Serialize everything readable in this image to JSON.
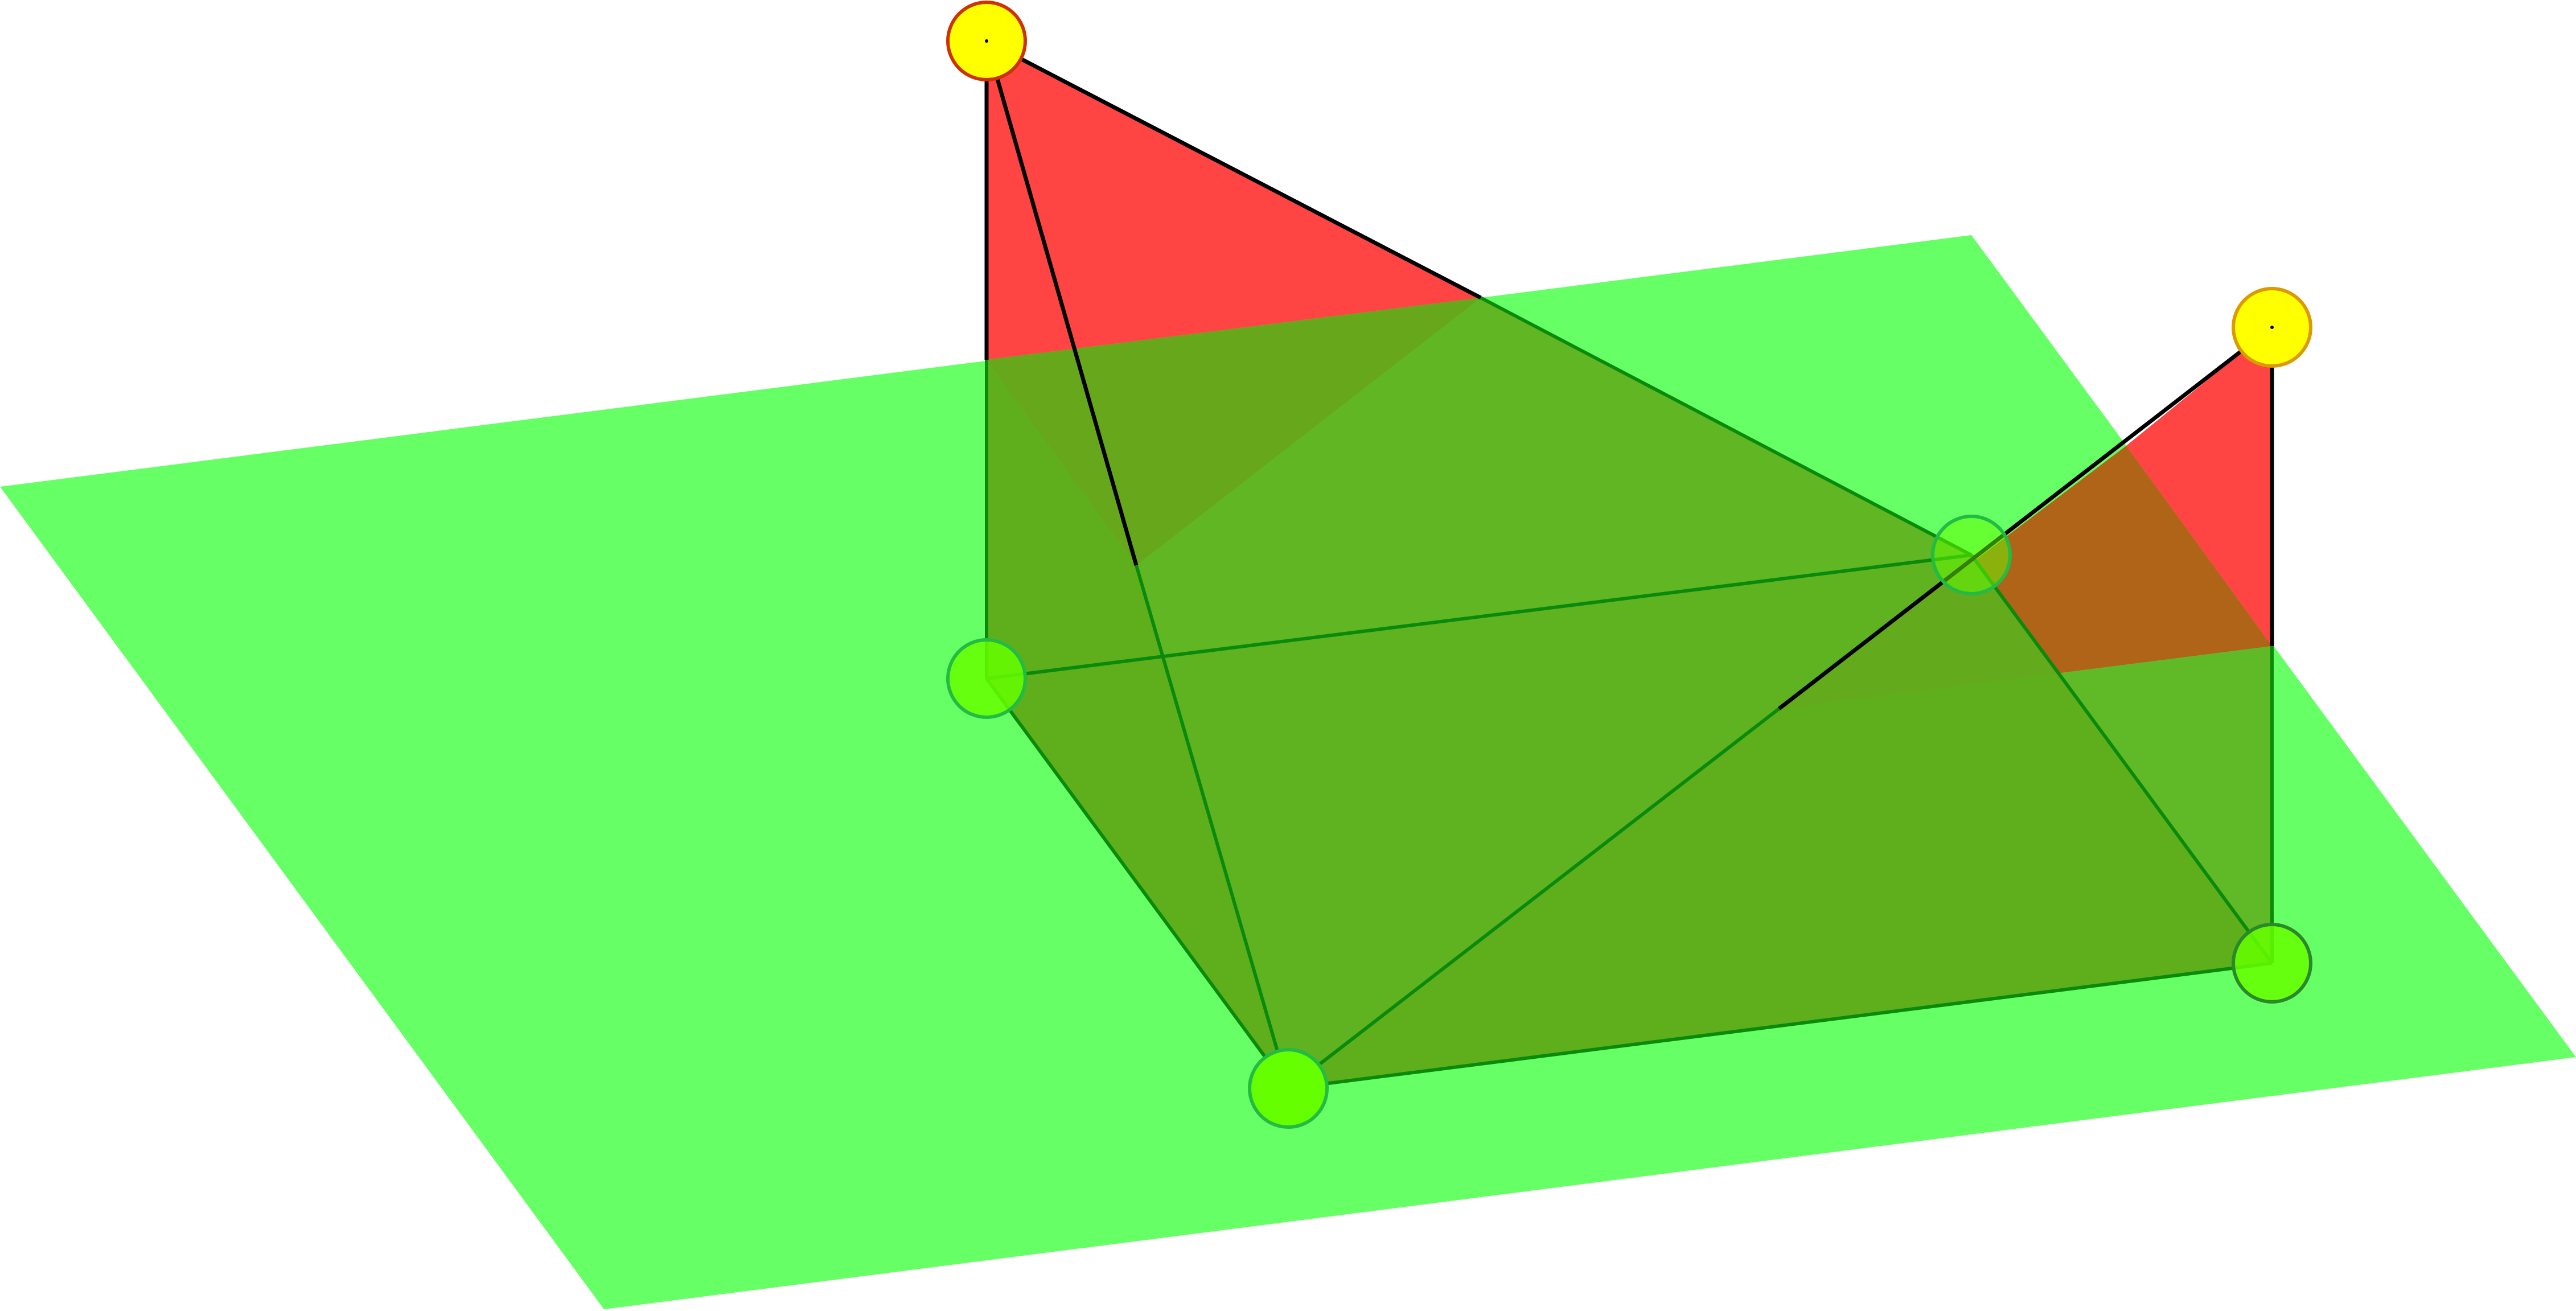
{
  "scene": {
    "description_type": "3d-geometry-view",
    "colors": {
      "background": "#ffffff",
      "ground_plane": "#66ff66",
      "red_triangle": "#ff4444",
      "red_behind_plane": "#b06418",
      "box_face": "#5fae1c",
      "box_edge": "#0a8a0a",
      "black_edge": "#000000",
      "top_point_fill": "#ffff00",
      "top_point_stroke_1": "#cc3300",
      "top_point_stroke_2": "#dd9900",
      "base_point_fill": "#66ff00",
      "base_point_stroke": "#22bb44"
    },
    "points": {
      "top": [
        {
          "name": "top-point-left"
        },
        {
          "name": "top-point-right"
        }
      ],
      "base": [
        {
          "name": "base-point-back-left"
        },
        {
          "name": "base-point-back-right"
        },
        {
          "name": "base-point-front-left"
        },
        {
          "name": "base-point-front-right"
        }
      ]
    }
  }
}
